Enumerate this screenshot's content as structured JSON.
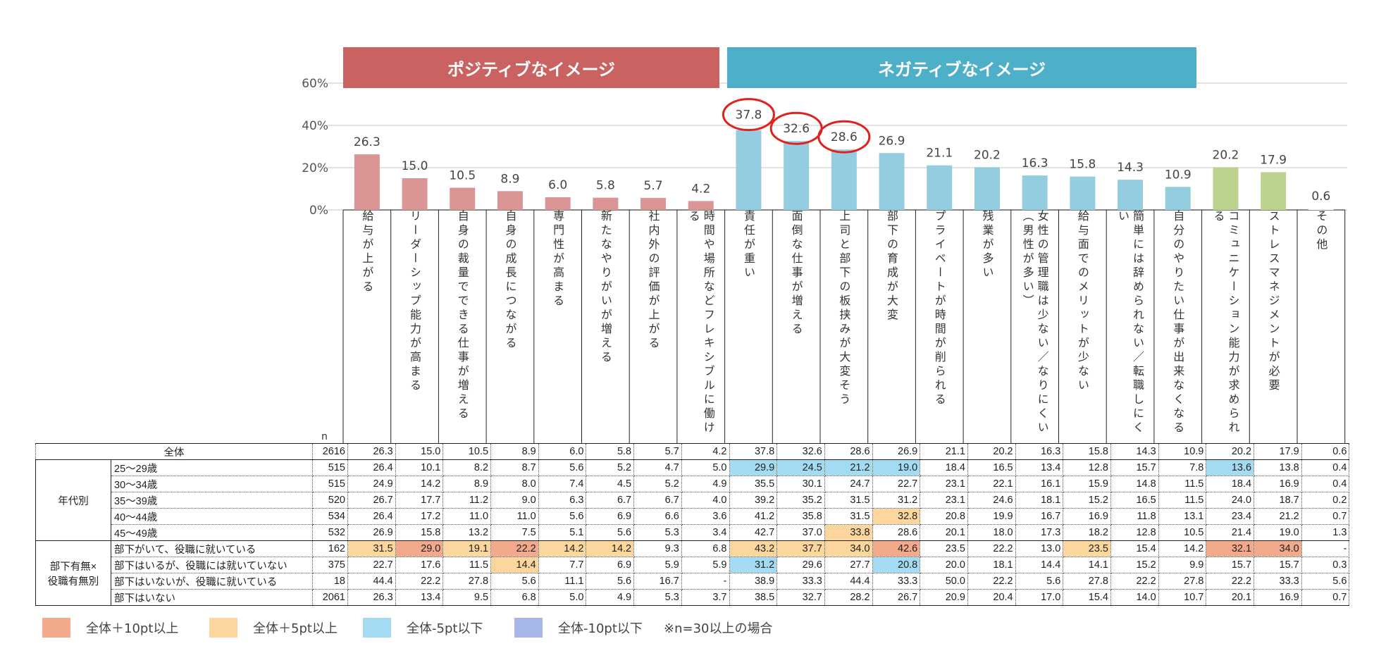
{
  "chart_data": {
    "type": "bar",
    "ylim": [
      0,
      60
    ],
    "yticks": [
      "0%",
      "20%",
      "40%",
      "60%"
    ],
    "groups": [
      {
        "label": "ポジティブなイメージ",
        "color": "#c96260"
      },
      {
        "label": "ネガティブなイメージ",
        "color": "#4eb0c8"
      }
    ],
    "categories": [
      {
        "label": "給与が上がる",
        "value": 26.3,
        "value_label": "26.3",
        "color": "#db9594",
        "circled": false
      },
      {
        "label": "リーダーシップ能力が高まる",
        "value": 15.0,
        "value_label": "15.0",
        "color": "#db9594",
        "circled": false
      },
      {
        "label": "自身の裁量でできる仕事が増える",
        "value": 10.5,
        "value_label": "10.5",
        "color": "#db9594",
        "circled": false
      },
      {
        "label": "自身の成長につながる",
        "value": 8.9,
        "value_label": "8.9",
        "color": "#db9594",
        "circled": false
      },
      {
        "label": "専門性が高まる",
        "value": 6.0,
        "value_label": "6.0",
        "color": "#db9594",
        "circled": false
      },
      {
        "label": "新たなやりがいが増える",
        "value": 5.8,
        "value_label": "5.8",
        "color": "#db9594",
        "circled": false
      },
      {
        "label": "社内外の評価が上がる",
        "value": 5.7,
        "value_label": "5.7",
        "color": "#db9594",
        "circled": false
      },
      {
        "label": "時間や場所などフレキシブルに働ける",
        "value": 4.2,
        "value_label": "4.2",
        "color": "#db9594",
        "circled": false
      },
      {
        "label": "責任が重い",
        "value": 37.8,
        "value_label": "37.8",
        "color": "#94cde0",
        "circled": true
      },
      {
        "label": "面倒な仕事が増える",
        "value": 32.6,
        "value_label": "32.6",
        "color": "#94cde0",
        "circled": true
      },
      {
        "label": "上司と部下の板挟みが大変そう",
        "value": 28.6,
        "value_label": "28.6",
        "color": "#94cde0",
        "circled": true
      },
      {
        "label": "部下の育成が大変",
        "value": 26.9,
        "value_label": "26.9",
        "color": "#94cde0",
        "circled": false
      },
      {
        "label": "プライベートが時間が削られる",
        "value": 21.1,
        "value_label": "21.1",
        "color": "#94cde0",
        "circled": false
      },
      {
        "label": "残業が多い",
        "value": 20.2,
        "value_label": "20.2",
        "color": "#94cde0",
        "circled": false
      },
      {
        "label": "女性の管理職は少ない／なりにくい（男性が多い）",
        "value": 16.3,
        "value_label": "16.3",
        "color": "#94cde0",
        "circled": false
      },
      {
        "label": "給与面でのメリットが少ない",
        "value": 15.8,
        "value_label": "15.8",
        "color": "#94cde0",
        "circled": false
      },
      {
        "label": "簡単には辞められない／転職しにくい",
        "value": 14.3,
        "value_label": "14.3",
        "color": "#94cde0",
        "circled": false
      },
      {
        "label": "自分のやりたい仕事が出来なくなる",
        "value": 10.9,
        "value_label": "10.9",
        "color": "#94cde0",
        "circled": false
      },
      {
        "label": "コミュニケーション能力が求められる",
        "value": 20.2,
        "value_label": "20.2",
        "color": "#bcd38f",
        "circled": false
      },
      {
        "label": "ストレスマネジメントが必要",
        "value": 17.9,
        "value_label": "17.9",
        "color": "#bcd38f",
        "circled": false
      },
      {
        "label": "その他",
        "value": 0.6,
        "value_label": "0.6",
        "color": "#ffffff",
        "circled": false
      }
    ]
  },
  "table": {
    "n_header": "n",
    "groups": [
      {
        "label": "年代別"
      },
      {
        "label": "部下有無×役職有無別"
      }
    ],
    "total": {
      "label": "全体",
      "n": "2616",
      "cells": [
        {
          "v": "26.3",
          "c": ""
        },
        {
          "v": "15.0",
          "c": ""
        },
        {
          "v": "10.5",
          "c": ""
        },
        {
          "v": "8.9",
          "c": ""
        },
        {
          "v": "6.0",
          "c": ""
        },
        {
          "v": "5.8",
          "c": ""
        },
        {
          "v": "5.7",
          "c": ""
        },
        {
          "v": "4.2",
          "c": ""
        },
        {
          "v": "37.8",
          "c": ""
        },
        {
          "v": "32.6",
          "c": ""
        },
        {
          "v": "28.6",
          "c": ""
        },
        {
          "v": "26.9",
          "c": ""
        },
        {
          "v": "21.1",
          "c": ""
        },
        {
          "v": "20.2",
          "c": ""
        },
        {
          "v": "16.3",
          "c": ""
        },
        {
          "v": "15.8",
          "c": ""
        },
        {
          "v": "14.3",
          "c": ""
        },
        {
          "v": "10.9",
          "c": ""
        },
        {
          "v": "20.2",
          "c": ""
        },
        {
          "v": "17.9",
          "c": ""
        },
        {
          "v": "0.6",
          "c": ""
        }
      ]
    },
    "rows": [
      {
        "group": 0,
        "label": "25～29歳",
        "n": "515",
        "cells": [
          {
            "v": "26.4",
            "c": ""
          },
          {
            "v": "10.1",
            "c": ""
          },
          {
            "v": "8.2",
            "c": ""
          },
          {
            "v": "8.7",
            "c": ""
          },
          {
            "v": "5.6",
            "c": ""
          },
          {
            "v": "5.2",
            "c": ""
          },
          {
            "v": "4.7",
            "c": ""
          },
          {
            "v": "5.0",
            "c": ""
          },
          {
            "v": "29.9",
            "c": "m5"
          },
          {
            "v": "24.5",
            "c": "m5"
          },
          {
            "v": "21.2",
            "c": "m5"
          },
          {
            "v": "19.0",
            "c": "m5"
          },
          {
            "v": "18.4",
            "c": ""
          },
          {
            "v": "16.5",
            "c": ""
          },
          {
            "v": "13.4",
            "c": ""
          },
          {
            "v": "12.8",
            "c": ""
          },
          {
            "v": "15.7",
            "c": ""
          },
          {
            "v": "7.8",
            "c": ""
          },
          {
            "v": "13.6",
            "c": "m5"
          },
          {
            "v": "13.8",
            "c": ""
          },
          {
            "v": "0.4",
            "c": ""
          }
        ]
      },
      {
        "group": 0,
        "label": "30～34歳",
        "n": "515",
        "cells": [
          {
            "v": "24.9",
            "c": ""
          },
          {
            "v": "14.2",
            "c": ""
          },
          {
            "v": "8.9",
            "c": ""
          },
          {
            "v": "8.0",
            "c": ""
          },
          {
            "v": "7.4",
            "c": ""
          },
          {
            "v": "4.5",
            "c": ""
          },
          {
            "v": "5.2",
            "c": ""
          },
          {
            "v": "4.9",
            "c": ""
          },
          {
            "v": "35.5",
            "c": ""
          },
          {
            "v": "30.1",
            "c": ""
          },
          {
            "v": "24.7",
            "c": ""
          },
          {
            "v": "22.7",
            "c": ""
          },
          {
            "v": "23.1",
            "c": ""
          },
          {
            "v": "22.1",
            "c": ""
          },
          {
            "v": "16.1",
            "c": ""
          },
          {
            "v": "15.9",
            "c": ""
          },
          {
            "v": "14.8",
            "c": ""
          },
          {
            "v": "11.5",
            "c": ""
          },
          {
            "v": "18.4",
            "c": ""
          },
          {
            "v": "16.9",
            "c": ""
          },
          {
            "v": "0.4",
            "c": ""
          }
        ]
      },
      {
        "group": 0,
        "label": "35～39歳",
        "n": "520",
        "cells": [
          {
            "v": "26.7",
            "c": ""
          },
          {
            "v": "17.7",
            "c": ""
          },
          {
            "v": "11.2",
            "c": ""
          },
          {
            "v": "9.0",
            "c": ""
          },
          {
            "v": "6.3",
            "c": ""
          },
          {
            "v": "6.7",
            "c": ""
          },
          {
            "v": "6.7",
            "c": ""
          },
          {
            "v": "4.0",
            "c": ""
          },
          {
            "v": "39.2",
            "c": ""
          },
          {
            "v": "35.2",
            "c": ""
          },
          {
            "v": "31.5",
            "c": ""
          },
          {
            "v": "31.2",
            "c": ""
          },
          {
            "v": "23.1",
            "c": ""
          },
          {
            "v": "24.6",
            "c": ""
          },
          {
            "v": "18.1",
            "c": ""
          },
          {
            "v": "15.2",
            "c": ""
          },
          {
            "v": "16.5",
            "c": ""
          },
          {
            "v": "11.5",
            "c": ""
          },
          {
            "v": "24.0",
            "c": ""
          },
          {
            "v": "18.7",
            "c": ""
          },
          {
            "v": "0.2",
            "c": ""
          }
        ]
      },
      {
        "group": 0,
        "label": "40～44歳",
        "n": "534",
        "cells": [
          {
            "v": "26.4",
            "c": ""
          },
          {
            "v": "17.2",
            "c": ""
          },
          {
            "v": "11.0",
            "c": ""
          },
          {
            "v": "11.0",
            "c": ""
          },
          {
            "v": "5.6",
            "c": ""
          },
          {
            "v": "6.9",
            "c": ""
          },
          {
            "v": "6.6",
            "c": ""
          },
          {
            "v": "3.6",
            "c": ""
          },
          {
            "v": "41.2",
            "c": ""
          },
          {
            "v": "35.8",
            "c": ""
          },
          {
            "v": "31.5",
            "c": ""
          },
          {
            "v": "32.8",
            "c": "p5"
          },
          {
            "v": "20.8",
            "c": ""
          },
          {
            "v": "19.9",
            "c": ""
          },
          {
            "v": "16.7",
            "c": ""
          },
          {
            "v": "16.9",
            "c": ""
          },
          {
            "v": "11.8",
            "c": ""
          },
          {
            "v": "13.1",
            "c": ""
          },
          {
            "v": "23.4",
            "c": ""
          },
          {
            "v": "21.2",
            "c": ""
          },
          {
            "v": "0.7",
            "c": ""
          }
        ]
      },
      {
        "group": 0,
        "label": "45～49歳",
        "n": "532",
        "cells": [
          {
            "v": "26.9",
            "c": ""
          },
          {
            "v": "15.8",
            "c": ""
          },
          {
            "v": "13.2",
            "c": ""
          },
          {
            "v": "7.5",
            "c": ""
          },
          {
            "v": "5.1",
            "c": ""
          },
          {
            "v": "5.6",
            "c": ""
          },
          {
            "v": "5.3",
            "c": ""
          },
          {
            "v": "3.4",
            "c": ""
          },
          {
            "v": "42.7",
            "c": ""
          },
          {
            "v": "37.0",
            "c": ""
          },
          {
            "v": "33.8",
            "c": "p5"
          },
          {
            "v": "28.6",
            "c": ""
          },
          {
            "v": "20.1",
            "c": ""
          },
          {
            "v": "18.0",
            "c": ""
          },
          {
            "v": "17.3",
            "c": ""
          },
          {
            "v": "18.2",
            "c": ""
          },
          {
            "v": "12.8",
            "c": ""
          },
          {
            "v": "10.5",
            "c": ""
          },
          {
            "v": "21.4",
            "c": ""
          },
          {
            "v": "19.0",
            "c": ""
          },
          {
            "v": "1.3",
            "c": ""
          }
        ]
      },
      {
        "group": 1,
        "label": "部下がいて、役職に就いている",
        "n": "162",
        "cells": [
          {
            "v": "31.5",
            "c": "p5"
          },
          {
            "v": "29.0",
            "c": "p10"
          },
          {
            "v": "19.1",
            "c": "p5"
          },
          {
            "v": "22.2",
            "c": "p10"
          },
          {
            "v": "14.2",
            "c": "p5"
          },
          {
            "v": "14.2",
            "c": "p5"
          },
          {
            "v": "9.3",
            "c": ""
          },
          {
            "v": "6.8",
            "c": ""
          },
          {
            "v": "43.2",
            "c": "p5"
          },
          {
            "v": "37.7",
            "c": "p5"
          },
          {
            "v": "34.0",
            "c": "p5"
          },
          {
            "v": "42.6",
            "c": "p10"
          },
          {
            "v": "23.5",
            "c": ""
          },
          {
            "v": "22.2",
            "c": ""
          },
          {
            "v": "13.0",
            "c": ""
          },
          {
            "v": "23.5",
            "c": "p5"
          },
          {
            "v": "15.4",
            "c": ""
          },
          {
            "v": "14.2",
            "c": ""
          },
          {
            "v": "32.1",
            "c": "p10"
          },
          {
            "v": "34.0",
            "c": "p10"
          },
          {
            "v": "-",
            "c": ""
          }
        ]
      },
      {
        "group": 1,
        "label": "部下はいるが、役職には就いていない",
        "n": "375",
        "cells": [
          {
            "v": "22.7",
            "c": ""
          },
          {
            "v": "17.6",
            "c": ""
          },
          {
            "v": "11.5",
            "c": ""
          },
          {
            "v": "14.4",
            "c": "p5"
          },
          {
            "v": "7.7",
            "c": ""
          },
          {
            "v": "6.9",
            "c": ""
          },
          {
            "v": "5.9",
            "c": ""
          },
          {
            "v": "5.9",
            "c": ""
          },
          {
            "v": "31.2",
            "c": "m5"
          },
          {
            "v": "29.6",
            "c": ""
          },
          {
            "v": "27.7",
            "c": ""
          },
          {
            "v": "20.8",
            "c": "m5"
          },
          {
            "v": "20.0",
            "c": ""
          },
          {
            "v": "18.1",
            "c": ""
          },
          {
            "v": "14.4",
            "c": ""
          },
          {
            "v": "14.1",
            "c": ""
          },
          {
            "v": "15.2",
            "c": ""
          },
          {
            "v": "9.9",
            "c": ""
          },
          {
            "v": "15.7",
            "c": ""
          },
          {
            "v": "15.7",
            "c": ""
          },
          {
            "v": "0.3",
            "c": ""
          }
        ]
      },
      {
        "group": 1,
        "label": "部下はいないが、役職に就いている",
        "n": "18",
        "cells": [
          {
            "v": "44.4",
            "c": ""
          },
          {
            "v": "22.2",
            "c": ""
          },
          {
            "v": "27.8",
            "c": ""
          },
          {
            "v": "5.6",
            "c": ""
          },
          {
            "v": "11.1",
            "c": ""
          },
          {
            "v": "5.6",
            "c": ""
          },
          {
            "v": "16.7",
            "c": ""
          },
          {
            "v": "-",
            "c": ""
          },
          {
            "v": "38.9",
            "c": ""
          },
          {
            "v": "33.3",
            "c": ""
          },
          {
            "v": "44.4",
            "c": ""
          },
          {
            "v": "33.3",
            "c": ""
          },
          {
            "v": "50.0",
            "c": ""
          },
          {
            "v": "22.2",
            "c": ""
          },
          {
            "v": "5.6",
            "c": ""
          },
          {
            "v": "27.8",
            "c": ""
          },
          {
            "v": "22.2",
            "c": ""
          },
          {
            "v": "27.8",
            "c": ""
          },
          {
            "v": "22.2",
            "c": ""
          },
          {
            "v": "33.3",
            "c": ""
          },
          {
            "v": "5.6",
            "c": ""
          }
        ]
      },
      {
        "group": 1,
        "label": "部下はいない",
        "n": "2061",
        "cells": [
          {
            "v": "26.3",
            "c": ""
          },
          {
            "v": "13.4",
            "c": ""
          },
          {
            "v": "9.5",
            "c": ""
          },
          {
            "v": "6.8",
            "c": ""
          },
          {
            "v": "5.0",
            "c": ""
          },
          {
            "v": "4.9",
            "c": ""
          },
          {
            "v": "5.3",
            "c": ""
          },
          {
            "v": "3.7",
            "c": ""
          },
          {
            "v": "38.5",
            "c": ""
          },
          {
            "v": "32.7",
            "c": ""
          },
          {
            "v": "28.2",
            "c": ""
          },
          {
            "v": "26.7",
            "c": ""
          },
          {
            "v": "20.9",
            "c": ""
          },
          {
            "v": "20.4",
            "c": ""
          },
          {
            "v": "17.0",
            "c": ""
          },
          {
            "v": "15.4",
            "c": ""
          },
          {
            "v": "14.0",
            "c": ""
          },
          {
            "v": "10.7",
            "c": ""
          },
          {
            "v": "20.1",
            "c": ""
          },
          {
            "v": "16.9",
            "c": ""
          },
          {
            "v": "0.7",
            "c": ""
          }
        ]
      }
    ]
  },
  "legend": {
    "items": [
      {
        "key": "p10",
        "label": "全体＋10pt以上",
        "color": "#f2a98c"
      },
      {
        "key": "p5",
        "label": "全体＋5pt以上",
        "color": "#fcd69c"
      },
      {
        "key": "m5",
        "label": "全体-5pt以下",
        "color": "#a3dbf5"
      },
      {
        "key": "m10",
        "label": "全体-10pt以下",
        "color": "#a6b6e6"
      }
    ],
    "note": "※n=30以上の場合"
  }
}
